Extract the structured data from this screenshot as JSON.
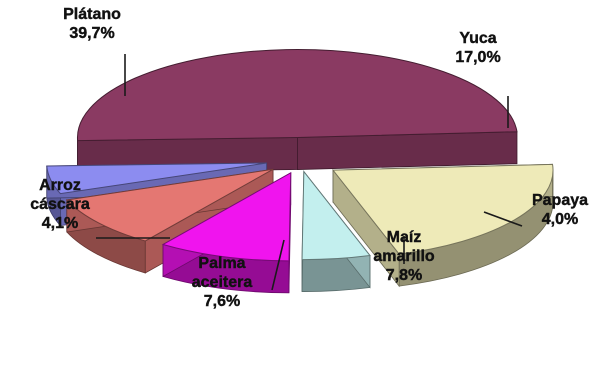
{
  "chart_data": {
    "type": "pie",
    "style": "3d-exploded",
    "unit": "%",
    "slices": [
      {
        "label_lines": [
          "Plátano"
        ],
        "value_label": "39,7%",
        "value": 39.7,
        "color": "#8a3a62"
      },
      {
        "label_lines": [
          "Yuca"
        ],
        "value_label": "17,0%",
        "value": 17.0,
        "color": "#eeeab8"
      },
      {
        "label_lines": [
          "Papaya"
        ],
        "value_label": "4,0%",
        "value": 4.0,
        "color": "#c3efee"
      },
      {
        "label_lines": [
          "Maíz",
          "amarillo"
        ],
        "value_label": "7,8%",
        "value": 7.8,
        "color": "#f014ee"
      },
      {
        "label_lines": [
          "Palma",
          "aceitera"
        ],
        "value_label": "7,6%",
        "value": 7.6,
        "color": "#e47772"
      },
      {
        "label_lines": [
          "Arroz",
          "cáscara"
        ],
        "value_label": "4,1%",
        "value": 4.1,
        "color": "#8c8cf0"
      }
    ]
  }
}
